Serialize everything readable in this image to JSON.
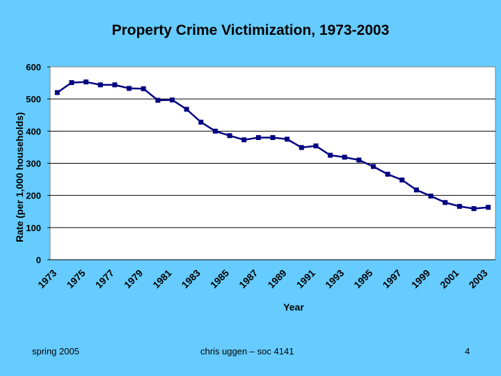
{
  "slide": {
    "title": "Property Crime Victimization, 1973-2003",
    "footer_left": "spring 2005",
    "footer_center": "chris uggen – soc 4141",
    "page_number": "4",
    "background_color": "#66ccff"
  },
  "chart_data": {
    "type": "line",
    "xlabel": "Year",
    "ylabel": "Rate (per 1,000 households)",
    "ylim": [
      0,
      600
    ],
    "yticks": [
      0,
      100,
      200,
      300,
      400,
      500,
      600
    ],
    "xtick_labels": [
      "1973",
      "1975",
      "1977",
      "1979",
      "1981",
      "1983",
      "1985",
      "1987",
      "1989",
      "1991",
      "1993",
      "1995",
      "1997",
      "1999",
      "2001",
      "2003"
    ],
    "grid": "horizontal",
    "legend": "none",
    "line_color": "#000080",
    "plot_background": "#ffffff",
    "series": [
      {
        "x": [
          1973,
          1974,
          1975,
          1976,
          1977,
          1978,
          1979,
          1980,
          1981,
          1982,
          1983,
          1984,
          1985,
          1986,
          1987,
          1988,
          1989,
          1990,
          1991,
          1992,
          1993,
          1994,
          1995,
          1996,
          1997,
          1998,
          1999,
          2000,
          2001,
          2002,
          2003
        ],
        "values": [
          520,
          551,
          553,
          544,
          544,
          533,
          532,
          496,
          497,
          468,
          428,
          400,
          386,
          373,
          380,
          380,
          375,
          349,
          354,
          325,
          319,
          310,
          290,
          266,
          248,
          217,
          198,
          178,
          166,
          159,
          163
        ]
      }
    ]
  }
}
